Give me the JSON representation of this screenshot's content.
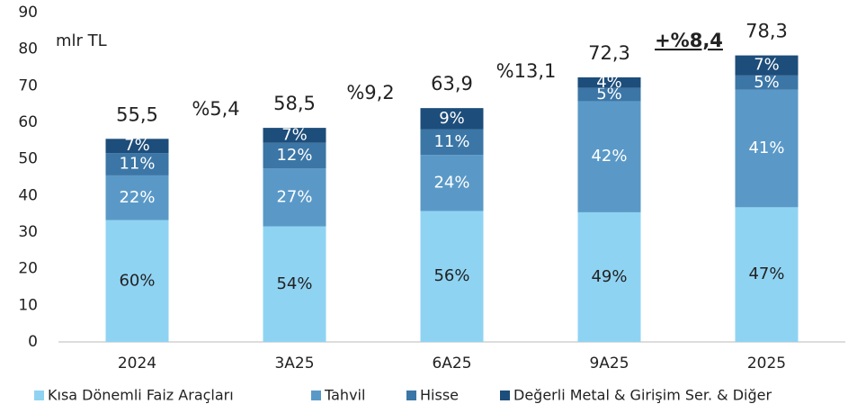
{
  "chart_data": {
    "type": "stacked_bar_percent",
    "y_axis_label": "mlr TL",
    "categories": [
      "2024",
      "3A25",
      "6A25",
      "9A25",
      "2025"
    ],
    "totals": [
      55.5,
      58.5,
      63.9,
      72.3,
      78.3
    ],
    "totals_labels": [
      "55,5",
      "58,5",
      "63,9",
      "72,3",
      "78,3"
    ],
    "series": [
      {
        "name": "Kısa Dönemli Faiz Araçları",
        "color": "#8fd3f3",
        "values": [
          60,
          54,
          56,
          49,
          47
        ],
        "value_labels": [
          "60%",
          "54%",
          "56%",
          "49%",
          "47%"
        ]
      },
      {
        "name": "Tahvil",
        "color": "#5a99c7",
        "values": [
          22,
          27,
          24,
          42,
          41
        ],
        "value_labels": [
          "22%",
          "27%",
          "24%",
          "42%",
          "41%"
        ]
      },
      {
        "name": "Hisse",
        "color": "#3b76a6",
        "values": [
          11,
          12,
          11,
          5,
          5
        ],
        "value_labels": [
          "11%",
          "12%",
          "11%",
          "5%",
          "5%"
        ]
      },
      {
        "name": "Değerli Metal & Girişim Ser. & Diğer",
        "color": "#1d4d7a",
        "values": [
          7,
          7,
          9,
          4,
          7
        ],
        "value_labels": [
          "7%",
          "7%",
          "9%",
          "4%",
          "7%"
        ]
      }
    ],
    "annotations": [
      "%5,4",
      "%9,2",
      "%13,1",
      "+%8,4"
    ],
    "ylim": [
      0,
      90
    ],
    "yticks": [
      0,
      10,
      20,
      30,
      40,
      50,
      60,
      70,
      80,
      90
    ]
  }
}
